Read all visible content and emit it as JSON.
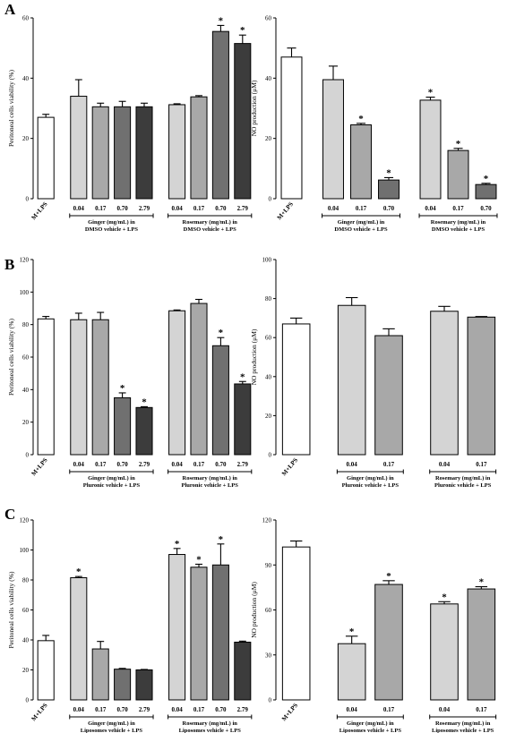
{
  "figure": {
    "panels": [
      "A",
      "B",
      "C"
    ]
  },
  "chart_data": [
    {
      "panel": "A",
      "type": "bar",
      "ylabel": "Peritoneal cells viability (%)",
      "ylim": [
        0,
        60
      ],
      "yticks": [
        0,
        20,
        40,
        60
      ],
      "categories": [
        "M+LPS",
        "0.04",
        "0.17",
        "0.70",
        "2.79",
        "0.04",
        "0.17",
        "0.70",
        "2.79"
      ],
      "values": [
        27,
        34,
        30.5,
        30.5,
        30.5,
        31.2,
        33.8,
        55.5,
        51.5
      ],
      "errors": [
        1,
        5.5,
        1.2,
        1.8,
        1.2,
        0.3,
        0.4,
        2,
        2.8
      ],
      "significant": [
        false,
        false,
        false,
        false,
        false,
        false,
        false,
        true,
        true
      ],
      "colors": [
        "#ffffff",
        "#d4d4d4",
        "#a8a8a8",
        "#707070",
        "#3c3c3c",
        "#d4d4d4",
        "#a8a8a8",
        "#707070",
        "#3c3c3c"
      ],
      "groups": [
        {
          "lines": [
            "Ginger (mg/mL) in",
            "DMSO vehicle + LPS"
          ],
          "from": 1,
          "to": 4
        },
        {
          "lines": [
            "Rosemary (mg/mL) in",
            "DMSO vehicle + LPS"
          ],
          "from": 5,
          "to": 8
        }
      ]
    },
    {
      "panel": "A",
      "type": "bar",
      "ylabel": "NO production (μM)",
      "ylim": [
        0,
        60
      ],
      "yticks": [
        0,
        20,
        40,
        60
      ],
      "categories": [
        "M+LPS",
        "0.04",
        "0.17",
        "0.70",
        "0.04",
        "0.17",
        "0.70"
      ],
      "values": [
        47,
        39.5,
        24.5,
        6.2,
        32.7,
        16,
        4.7
      ],
      "errors": [
        3,
        4.5,
        0.5,
        0.8,
        1,
        0.7,
        0.4
      ],
      "significant": [
        false,
        false,
        true,
        true,
        true,
        true,
        true
      ],
      "colors": [
        "#ffffff",
        "#d4d4d4",
        "#a8a8a8",
        "#707070",
        "#d4d4d4",
        "#a8a8a8",
        "#707070"
      ],
      "groups": [
        {
          "lines": [
            "Ginger (mg/mL) in",
            "DMSO vehicle + LPS"
          ],
          "from": 1,
          "to": 3
        },
        {
          "lines": [
            "Rosemary (mg/mL) in",
            "DMSO vehicle + LPS"
          ],
          "from": 4,
          "to": 6
        }
      ]
    },
    {
      "panel": "B",
      "type": "bar",
      "ylabel": "Peritoneal cells viability (%)",
      "ylim": [
        0,
        120
      ],
      "yticks": [
        0,
        20,
        40,
        60,
        80,
        100,
        120
      ],
      "categories": [
        "M+LPS",
        "0.04",
        "0.17",
        "0.70",
        "2.79",
        "0.04",
        "0.17",
        "0.70",
        "2.79"
      ],
      "values": [
        83.5,
        83,
        83,
        35,
        29,
        88.5,
        93,
        67,
        43.5
      ],
      "errors": [
        1.5,
        4,
        4.5,
        3,
        0.5,
        0.5,
        2.5,
        5,
        1.5
      ],
      "significant": [
        false,
        false,
        false,
        true,
        true,
        false,
        false,
        true,
        true
      ],
      "colors": [
        "#ffffff",
        "#d4d4d4",
        "#a8a8a8",
        "#707070",
        "#3c3c3c",
        "#d4d4d4",
        "#a8a8a8",
        "#707070",
        "#3c3c3c"
      ],
      "groups": [
        {
          "lines": [
            "Ginger (mg/mL) in",
            "Pluronic vehicle + LPS"
          ],
          "from": 1,
          "to": 4
        },
        {
          "lines": [
            "Rosemary (mg/mL) in",
            "Pluronic vehicle + LPS"
          ],
          "from": 5,
          "to": 8
        }
      ]
    },
    {
      "panel": "B",
      "type": "bar",
      "ylabel": "NO production (μM)",
      "ylim": [
        0,
        100
      ],
      "yticks": [
        0,
        20,
        40,
        60,
        80,
        100
      ],
      "categories": [
        "M+LPS",
        "0.04",
        "0.17",
        "0.04",
        "0.17"
      ],
      "values": [
        67,
        76.5,
        61,
        73.5,
        70.5
      ],
      "errors": [
        3,
        4,
        3.5,
        2.5,
        0.3
      ],
      "significant": [
        false,
        false,
        false,
        false,
        false
      ],
      "colors": [
        "#ffffff",
        "#d4d4d4",
        "#a8a8a8",
        "#d4d4d4",
        "#a8a8a8"
      ],
      "groups": [
        {
          "lines": [
            "Ginger (mg/mL) in",
            "Pluronic vehicle + LPS"
          ],
          "from": 1,
          "to": 2
        },
        {
          "lines": [
            "Rosemary (mg/mL) in",
            "Pluronic vehicle + LPS"
          ],
          "from": 3,
          "to": 4
        }
      ]
    },
    {
      "panel": "C",
      "type": "bar",
      "ylabel": "Peritoneal cells viability (%)",
      "ylim": [
        0,
        120
      ],
      "yticks": [
        0,
        20,
        40,
        60,
        80,
        100,
        120
      ],
      "categories": [
        "M+LPS",
        "0.04",
        "0.17",
        "0.70",
        "2.79",
        "0.04",
        "0.17",
        "0.70",
        "2.79"
      ],
      "values": [
        39.5,
        81.5,
        34,
        20.5,
        20,
        97,
        88.5,
        90,
        38.5
      ],
      "errors": [
        3.5,
        0.8,
        5,
        0.5,
        0.3,
        4,
        2,
        14,
        0.7
      ],
      "significant": [
        false,
        true,
        false,
        false,
        false,
        true,
        true,
        true,
        false
      ],
      "colors": [
        "#ffffff",
        "#d4d4d4",
        "#a8a8a8",
        "#707070",
        "#3c3c3c",
        "#d4d4d4",
        "#a8a8a8",
        "#707070",
        "#3c3c3c"
      ],
      "groups": [
        {
          "lines": [
            "Ginger (mg/mL) in",
            "Liposomes vehicle + LPS"
          ],
          "from": 1,
          "to": 4
        },
        {
          "lines": [
            "Rosemary (mg/mL) in",
            "Liposomes vehicle + LPS"
          ],
          "from": 5,
          "to": 8
        }
      ]
    },
    {
      "panel": "C",
      "type": "bar",
      "ylabel": "NO production (μM)",
      "ylim": [
        0,
        120
      ],
      "yticks": [
        0,
        30,
        60,
        90,
        120
      ],
      "categories": [
        "M+LPS",
        "0.04",
        "0.17",
        "0.04",
        "0.17"
      ],
      "values": [
        102,
        37.5,
        77,
        64,
        74
      ],
      "errors": [
        4,
        5,
        2.5,
        1.5,
        1.5
      ],
      "significant": [
        false,
        true,
        true,
        true,
        true
      ],
      "colors": [
        "#ffffff",
        "#d4d4d4",
        "#a8a8a8",
        "#d4d4d4",
        "#a8a8a8"
      ],
      "groups": [
        {
          "lines": [
            "Ginger (mg/mL) in",
            "Liposomes vehicle + LPS"
          ],
          "from": 1,
          "to": 2
        },
        {
          "lines": [
            "Rosemary (mg/mL) in",
            "Liposomes vehicle + LPS"
          ],
          "from": 3,
          "to": 4
        }
      ]
    }
  ]
}
